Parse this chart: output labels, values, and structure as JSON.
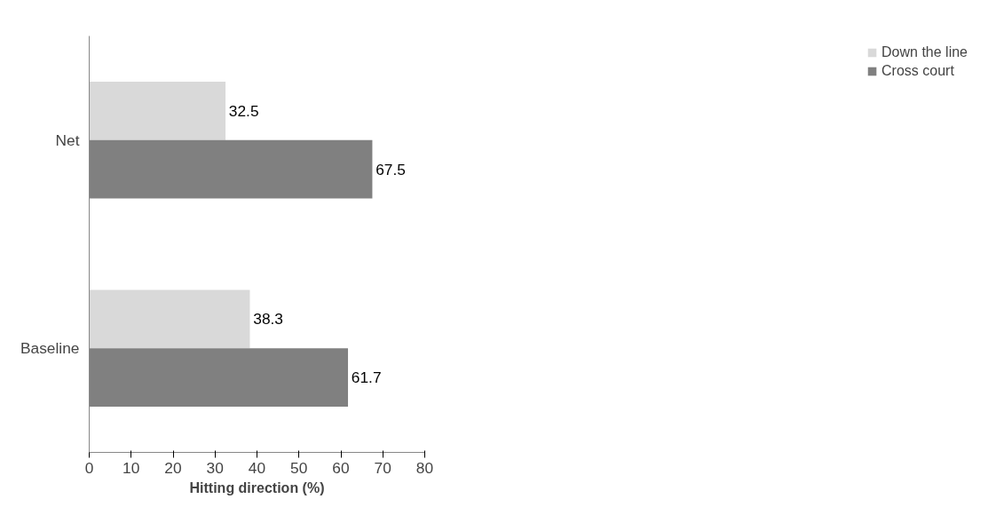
{
  "chart_data": {
    "type": "bar",
    "orientation": "horizontal",
    "categories": [
      "Net",
      "Baseline"
    ],
    "series": [
      {
        "name": "Down the line",
        "color": "#d9d9d9",
        "values": [
          32.5,
          38.3
        ]
      },
      {
        "name": "Cross court",
        "color": "#808080",
        "values": [
          67.5,
          61.7
        ]
      }
    ],
    "xlabel": "Hitting direction (%)",
    "xlim": [
      0,
      80
    ],
    "xticks": [
      0,
      10,
      20,
      30,
      40,
      50,
      60,
      70,
      80
    ],
    "data_labels": true,
    "legend": "right",
    "grid": false
  }
}
